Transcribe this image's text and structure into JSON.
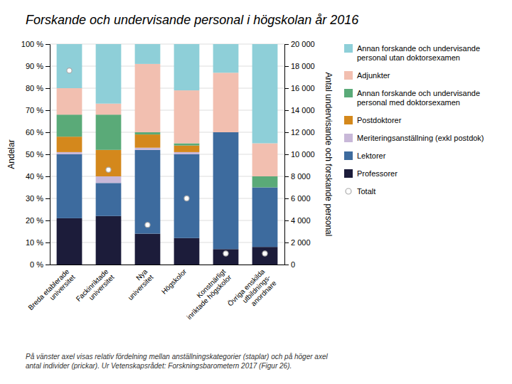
{
  "chart_data": {
    "type": "bar",
    "stacked": true,
    "title": "Forskande och undervisande personal i högskolan år 2016",
    "ylabel": "Andelar",
    "y2label": "Antal undervisande och forskande personal",
    "footnote": "På vänster axel visas relativ fördelning mellan anställningskategorier (staplar) och på höger axel\nantal individer (prickar). Ur Vetenskapsrådet: Forskningsbarometern 2017 (Figur 26).",
    "categories": [
      "Breda etablerade\nuniversitet",
      "Fackinriktade\nuniversitet",
      "Nya\nuniversitet",
      "Högskolor",
      "Konstnärligt\ninriktade högskolor",
      "Övriga enskilda\nutbildnings-\nanordnare"
    ],
    "ylim": [
      0,
      100
    ],
    "yticks": [
      {
        "value": 0,
        "label": "0 %"
      },
      {
        "value": 10,
        "label": "10 %"
      },
      {
        "value": 20,
        "label": "20 %"
      },
      {
        "value": 30,
        "label": "30 %"
      },
      {
        "value": 40,
        "label": "40 %"
      },
      {
        "value": 50,
        "label": "50 %"
      },
      {
        "value": 60,
        "label": "60 %"
      },
      {
        "value": 70,
        "label": "70 %"
      },
      {
        "value": 80,
        "label": "80 %"
      },
      {
        "value": 90,
        "label": "90 %"
      },
      {
        "value": 100,
        "label": "100 %"
      }
    ],
    "y2lim": [
      0,
      20000
    ],
    "y2ticks": [
      0,
      {
        "value": 2000,
        "label": "2 000"
      },
      {
        "value": 4000,
        "label": "4 000"
      },
      {
        "value": 6000,
        "label": "6 000"
      },
      {
        "value": 8000,
        "label": "8 000"
      },
      {
        "value": 10000,
        "label": "10 000"
      },
      {
        "value": 12000,
        "label": "12 000"
      },
      {
        "value": 14000,
        "label": "14 000"
      },
      {
        "value": 16000,
        "label": "16 000"
      },
      {
        "value": 18000,
        "label": "18 000"
      },
      {
        "value": 20000,
        "label": "20 000"
      }
    ],
    "grid": true,
    "legend": "right",
    "series": [
      {
        "name": "Professorer",
        "color": "#1c1c3a",
        "values": [
          21,
          22,
          14,
          12,
          7,
          8
        ]
      },
      {
        "name": "Lektorer",
        "color": "#3d6b9e",
        "values": [
          29,
          15,
          38,
          38,
          53,
          27
        ]
      },
      {
        "name": "Meriteringsanställning (exkl postdok)",
        "color": "#c8b8d8",
        "values": [
          1,
          3,
          1,
          1,
          0,
          0
        ]
      },
      {
        "name": "Postdoktorer",
        "color": "#d4881c",
        "values": [
          7,
          12,
          6,
          3,
          0,
          0
        ]
      },
      {
        "name": "Annan forskande och undervisande\npersonal med doktorsexamen",
        "color": "#5aaa78",
        "values": [
          10,
          16,
          1,
          1,
          0,
          5
        ]
      },
      {
        "name": "Adjunkter",
        "color": "#f2bfb0",
        "values": [
          12,
          5,
          31,
          24,
          27,
          15
        ]
      },
      {
        "name": "Annan forskande och undervisande\npersonal utan doktorsexamen",
        "color": "#8ecfd8",
        "values": [
          20,
          27,
          9,
          21,
          13,
          45
        ]
      },
      {
        "name": "Totalt",
        "type": "scatter",
        "marker": "circle",
        "color": "#aaaaaa",
        "values": [
          88,
          43,
          18,
          30,
          5,
          5
        ]
      }
    ]
  }
}
